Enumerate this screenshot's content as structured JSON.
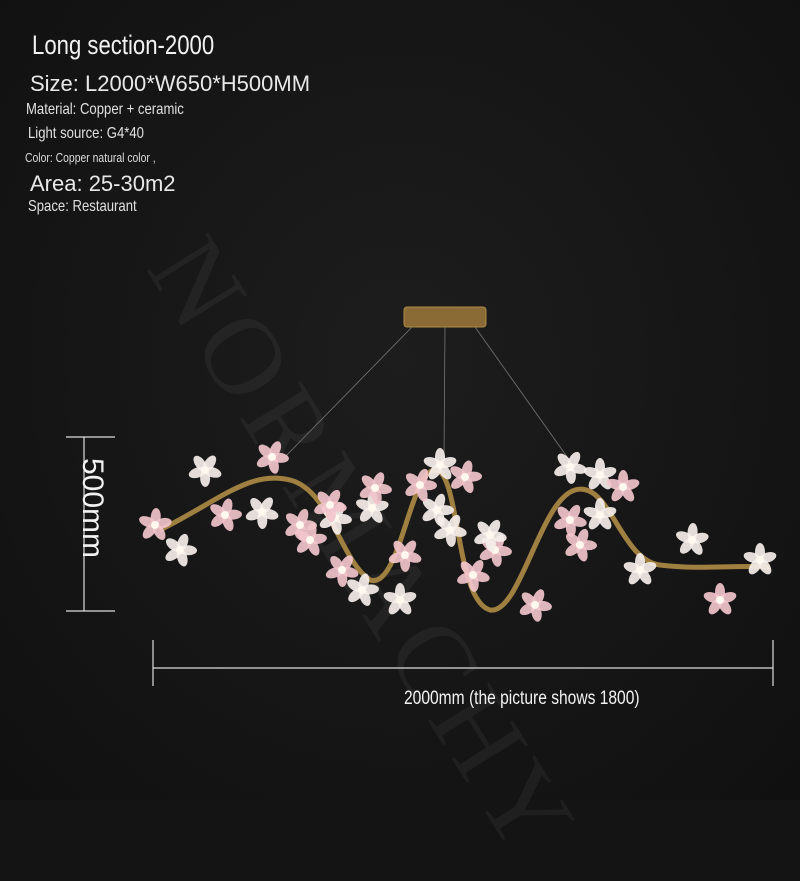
{
  "specs": {
    "title": "Long section-2000",
    "size": "Size: L2000*W650*H500MM",
    "material": "Material: Copper + ceramic",
    "light_source": "Light source: G4*40",
    "color": "Color: Copper natural color ,",
    "area": "Area: 25-30m2",
    "space": "Space: Restaurant"
  },
  "dimensions": {
    "height_label": "500mm",
    "width_label": "2000mm (the picture shows 1800)"
  },
  "watermark": "NORMACHY",
  "colors": {
    "background": "#141414",
    "brass": "#a08040",
    "petal_pink": "#f2c4cc",
    "petal_white": "#f5eeea"
  }
}
